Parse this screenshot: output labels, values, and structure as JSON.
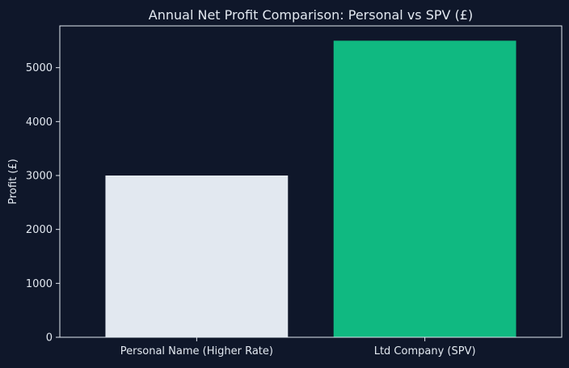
{
  "chart_data": {
    "type": "bar",
    "title": "Annual Net Profit Comparison: Personal vs SPV (£)",
    "xlabel": "",
    "ylabel": "Profit (£)",
    "categories": [
      "Personal Name (Higher Rate)",
      "Ltd Company (SPV)"
    ],
    "values": [
      3000,
      5500
    ],
    "bar_colors": [
      "#e2e8f0",
      "#10b981"
    ],
    "ylim": [
      0,
      5775
    ],
    "yticks": [
      0,
      1000,
      2000,
      3000,
      4000,
      5000
    ],
    "grid": false,
    "colors": {
      "background": "#0f172a",
      "axes": "#e2e8f0",
      "text": "#e2e8f0"
    }
  }
}
